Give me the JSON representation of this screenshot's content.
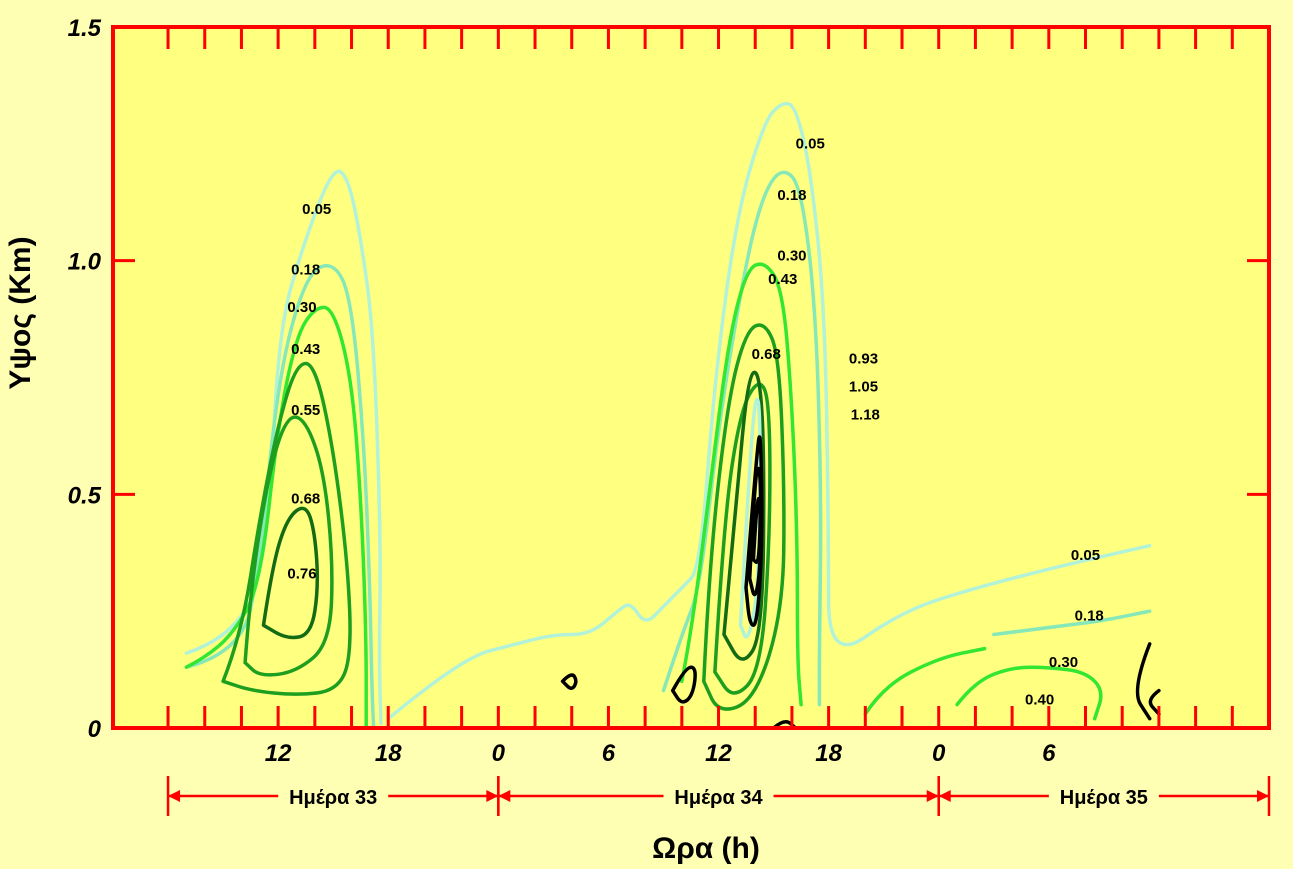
{
  "chart_data": {
    "type": "contour",
    "title": "",
    "xlabel": "Ωρα (h)",
    "ylabel": "Υψος (Km)",
    "ylim": [
      0,
      1.5
    ],
    "xlim": [
      3,
      66
    ],
    "x_ticks": [
      {
        "value": 12,
        "label": "12"
      },
      {
        "value": 18,
        "label": "18"
      },
      {
        "value": 24,
        "label": "0"
      },
      {
        "value": 30,
        "label": "6"
      },
      {
        "value": 36,
        "label": "12"
      },
      {
        "value": 42,
        "label": "18"
      },
      {
        "value": 48,
        "label": "0"
      },
      {
        "value": 54,
        "label": "6"
      }
    ],
    "y_ticks": [
      {
        "value": 0,
        "label": "0"
      },
      {
        "value": 0.5,
        "label": "0.5"
      },
      {
        "value": 1.0,
        "label": "1.0"
      },
      {
        "value": 1.5,
        "label": "1.5"
      }
    ],
    "days": [
      {
        "label": "Ημέρα 33",
        "from": 6,
        "to": 24
      },
      {
        "label": "Ημέρα 34",
        "from": 24,
        "to": 48
      },
      {
        "label": "Ημέρα 35",
        "from": 48,
        "to": 66
      }
    ],
    "colors": {
      "frame": "#FF0000",
      "background": "#FFFF80",
      "page": "#FFFFB3"
    },
    "contours": [
      {
        "level": 0.05,
        "color": "#B2F2D9",
        "points": [
          [
            7,
            0.16
          ],
          [
            10,
            0.2
          ],
          [
            11.5,
            0.4
          ],
          [
            12,
            0.85
          ],
          [
            13.5,
            1.05
          ],
          [
            15,
            1.2
          ],
          [
            15.8,
            1.18
          ],
          [
            16.5,
            1.05
          ],
          [
            17.2,
            0.85
          ],
          [
            17.6,
            0.4
          ],
          [
            17.5,
            0.15
          ],
          [
            17.6,
            0.01
          ]
        ]
      },
      {
        "level": 0.05,
        "color": "#B2F2D9",
        "points": [
          [
            18,
            0.02
          ],
          [
            22,
            0.15
          ],
          [
            25,
            0.18
          ],
          [
            27,
            0.2
          ],
          [
            29,
            0.2
          ],
          [
            30.5,
            0.25
          ],
          [
            31.2,
            0.27
          ],
          [
            32,
            0.22
          ],
          [
            33,
            0.26
          ],
          [
            34,
            0.3
          ],
          [
            35,
            0.34
          ],
          [
            35.8,
            0.75
          ],
          [
            37,
            1.1
          ],
          [
            38.5,
            1.3
          ],
          [
            39.5,
            1.34
          ],
          [
            40.2,
            1.33
          ],
          [
            41,
            1.2
          ],
          [
            41.8,
            0.9
          ],
          [
            42,
            0.4
          ],
          [
            42,
            0.14
          ],
          [
            46,
            0.25
          ],
          [
            50,
            0.3
          ],
          [
            55,
            0.35
          ],
          [
            59.5,
            0.39
          ]
        ]
      },
      {
        "level": 0.18,
        "color": "#86E8B8",
        "points": [
          [
            7,
            0.13
          ],
          [
            10,
            0.16
          ],
          [
            11,
            0.35
          ],
          [
            12,
            0.75
          ],
          [
            13.5,
            0.97
          ],
          [
            15,
            1.0
          ],
          [
            16,
            0.92
          ],
          [
            16.7,
            0.6
          ],
          [
            17,
            0.3
          ],
          [
            17.1,
            0.1
          ],
          [
            17.2,
            0.0
          ]
        ]
      },
      {
        "level": 0.18,
        "color": "#86E8B8",
        "points": [
          [
            33,
            0.08
          ],
          [
            34,
            0.2
          ],
          [
            35,
            0.3
          ],
          [
            36,
            0.65
          ],
          [
            37.5,
            1.0
          ],
          [
            38.5,
            1.15
          ],
          [
            39.5,
            1.2
          ],
          [
            40.5,
            1.16
          ],
          [
            41.3,
            0.9
          ],
          [
            41.6,
            0.5
          ],
          [
            41.5,
            0.18
          ],
          [
            41.5,
            0.05
          ]
        ]
      },
      {
        "level": 0.18,
        "color": "#86E8B8",
        "points": [
          [
            51,
            0.2
          ],
          [
            55,
            0.22
          ],
          [
            57,
            0.23
          ],
          [
            59.5,
            0.25
          ]
        ]
      },
      {
        "level": 0.3,
        "color": "#32E632",
        "points": [
          [
            7,
            0.13
          ],
          [
            8,
            0.15
          ],
          [
            9.5,
            0.2
          ],
          [
            11,
            0.3
          ],
          [
            12,
            0.65
          ],
          [
            13,
            0.84
          ],
          [
            14,
            0.9
          ],
          [
            15,
            0.9
          ],
          [
            16,
            0.75
          ],
          [
            16.5,
            0.5
          ],
          [
            16.8,
            0.2
          ],
          [
            16.8,
            0.0
          ]
        ]
      },
      {
        "level": 0.3,
        "color": "#32E632",
        "points": [
          [
            34,
            0.1
          ],
          [
            34.5,
            0.2
          ],
          [
            35.5,
            0.5
          ],
          [
            36.5,
            0.82
          ],
          [
            37.5,
            0.98
          ],
          [
            38.5,
            1.0
          ],
          [
            39.5,
            0.94
          ],
          [
            40,
            0.7
          ],
          [
            40.3,
            0.4
          ],
          [
            40.3,
            0.14
          ],
          [
            40.5,
            0.05
          ]
        ]
      },
      {
        "level": 0.3,
        "color": "#32E632",
        "points": [
          [
            49,
            0.05
          ],
          [
            50,
            0.1
          ],
          [
            52,
            0.13
          ],
          [
            54,
            0.13
          ],
          [
            56,
            0.12
          ],
          [
            57,
            0.08
          ],
          [
            56.5,
            0.02
          ]
        ]
      },
      {
        "level": 0.3,
        "color": "#32E632",
        "points": [
          [
            44,
            0.03
          ],
          [
            45,
            0.09
          ],
          [
            48,
            0.15
          ],
          [
            50.5,
            0.17
          ]
        ]
      },
      {
        "level": 0.43,
        "color": "#1E9E1E",
        "points": [
          [
            9,
            0.1
          ],
          [
            10,
            0.2
          ],
          [
            11,
            0.45
          ],
          [
            12,
            0.65
          ],
          [
            13,
            0.78
          ],
          [
            14,
            0.78
          ],
          [
            15,
            0.6
          ],
          [
            15.8,
            0.35
          ],
          [
            16,
            0.15
          ],
          [
            15.2,
            0.08
          ],
          [
            13,
            0.07
          ],
          [
            10.5,
            0.08
          ],
          [
            9,
            0.1
          ]
        ]
      },
      {
        "level": 0.43,
        "color": "#1E9E1E",
        "points": [
          [
            35.2,
            0.1
          ],
          [
            35.5,
            0.35
          ],
          [
            36.5,
            0.7
          ],
          [
            37.5,
            0.85
          ],
          [
            38.5,
            0.87
          ],
          [
            39.3,
            0.8
          ],
          [
            39.6,
            0.5
          ],
          [
            39.5,
            0.25
          ],
          [
            38,
            0.06
          ],
          [
            36,
            0.03
          ],
          [
            35.2,
            0.1
          ]
        ]
      },
      {
        "level": 0.55,
        "color": "#1E9E1E",
        "points": [
          [
            10.2,
            0.14
          ],
          [
            10.5,
            0.3
          ],
          [
            11.5,
            0.55
          ],
          [
            12.5,
            0.67
          ],
          [
            13.5,
            0.66
          ],
          [
            14.5,
            0.55
          ],
          [
            15,
            0.35
          ],
          [
            14.8,
            0.18
          ],
          [
            13,
            0.12
          ],
          [
            11,
            0.11
          ],
          [
            10.2,
            0.14
          ]
        ]
      },
      {
        "level": 0.55,
        "color": "#1E9E1E",
        "points": [
          [
            35.8,
            0.12
          ],
          [
            36.3,
            0.45
          ],
          [
            37.2,
            0.68
          ],
          [
            38.2,
            0.75
          ],
          [
            38.8,
            0.7
          ],
          [
            38.8,
            0.4
          ],
          [
            38.3,
            0.12
          ],
          [
            36.8,
            0.06
          ],
          [
            35.8,
            0.12
          ]
        ]
      },
      {
        "level": 0.68,
        "color": "#136B13",
        "points": [
          [
            11.2,
            0.22
          ],
          [
            11.7,
            0.35
          ],
          [
            12.5,
            0.45
          ],
          [
            13.5,
            0.48
          ],
          [
            14,
            0.42
          ],
          [
            14.2,
            0.3
          ],
          [
            13.8,
            0.2
          ],
          [
            12.5,
            0.19
          ],
          [
            11.2,
            0.22
          ]
        ]
      },
      {
        "level": 0.68,
        "color": "#136B13",
        "points": [
          [
            36.3,
            0.2
          ],
          [
            37,
            0.5
          ],
          [
            37.6,
            0.75
          ],
          [
            38.2,
            0.77
          ],
          [
            38.5,
            0.6
          ],
          [
            38.4,
            0.2
          ],
          [
            37.3,
            0.13
          ],
          [
            36.3,
            0.2
          ]
        ]
      },
      {
        "level": 0.76,
        "color": "#B2F2D9",
        "points": [
          [
            37.2,
            0.22
          ],
          [
            37.6,
            0.5
          ],
          [
            38,
            0.72
          ],
          [
            38.3,
            0.68
          ],
          [
            38.2,
            0.3
          ],
          [
            37.6,
            0.18
          ],
          [
            37.2,
            0.22
          ]
        ]
      },
      {
        "level": 0.93,
        "color": "#000000",
        "points": [
          [
            37.5,
            0.3
          ],
          [
            38.1,
            0.6
          ],
          [
            38.3,
            0.64
          ],
          [
            38.4,
            0.4
          ],
          [
            38.1,
            0.22
          ],
          [
            37.7,
            0.22
          ],
          [
            37.5,
            0.3
          ]
        ]
      },
      {
        "level": 1.05,
        "color": "#000000",
        "points": [
          [
            37.7,
            0.32
          ],
          [
            38.0,
            0.55
          ],
          [
            38.3,
            0.56
          ],
          [
            38.3,
            0.35
          ],
          [
            38.0,
            0.27
          ],
          [
            37.7,
            0.32
          ]
        ]
      },
      {
        "level": 1.18,
        "color": "#000000",
        "points": [
          [
            37.9,
            0.36
          ],
          [
            38.1,
            0.5
          ],
          [
            38.3,
            0.48
          ],
          [
            38.2,
            0.35
          ],
          [
            37.9,
            0.36
          ]
        ]
      },
      {
        "level": 0.4,
        "color": "#000000",
        "points": [
          [
            59.5,
            0.18
          ],
          [
            58.5,
            0.08
          ],
          [
            59.5,
            0.02
          ]
        ]
      },
      {
        "level": 0.4,
        "color": "#000000",
        "points": [
          [
            60,
            0.08
          ],
          [
            59.3,
            0.06
          ],
          [
            60,
            0.03
          ]
        ]
      },
      {
        "level": 0.4,
        "color": "#000000",
        "points": [
          [
            27.5,
            0.1
          ],
          [
            28.0,
            0.12
          ],
          [
            28.3,
            0.1
          ],
          [
            28.0,
            0.08
          ],
          [
            27.5,
            0.1
          ]
        ]
      },
      {
        "level": 0.4,
        "color": "#000000",
        "points": [
          [
            33.5,
            0.08
          ],
          [
            34.2,
            0.13
          ],
          [
            34.8,
            0.13
          ],
          [
            34.6,
            0.07
          ],
          [
            34.0,
            0.05
          ],
          [
            33.5,
            0.08
          ]
        ]
      },
      {
        "level": 0.4,
        "color": "#000000",
        "points": [
          [
            39.0,
            0.0
          ],
          [
            39.6,
            0.02
          ],
          [
            40.2,
            0.0
          ]
        ]
      }
    ],
    "labels": [
      {
        "text": "0.05",
        "x": 14.1,
        "y": 1.1
      },
      {
        "text": "0.18",
        "x": 13.5,
        "y": 0.97
      },
      {
        "text": "0.30",
        "x": 13.3,
        "y": 0.89
      },
      {
        "text": "0.43",
        "x": 13.5,
        "y": 0.8
      },
      {
        "text": "0.55",
        "x": 13.5,
        "y": 0.67
      },
      {
        "text": "0.68",
        "x": 13.5,
        "y": 0.48
      },
      {
        "text": "0.76",
        "x": 13.3,
        "y": 0.32
      },
      {
        "text": "0.05",
        "x": 41.0,
        "y": 1.24
      },
      {
        "text": "0.18",
        "x": 40.0,
        "y": 1.13
      },
      {
        "text": "0.30",
        "x": 40.0,
        "y": 1.0
      },
      {
        "text": "0.43",
        "x": 39.5,
        "y": 0.95
      },
      {
        "text": "0.68",
        "x": 38.6,
        "y": 0.79
      },
      {
        "text": "0.93",
        "x": 43.9,
        "y": 0.78
      },
      {
        "text": "1.05",
        "x": 43.9,
        "y": 0.72
      },
      {
        "text": "1.18",
        "x": 44.0,
        "y": 0.66
      },
      {
        "text": "0.05",
        "x": 56.0,
        "y": 0.36
      },
      {
        "text": "0.18",
        "x": 56.2,
        "y": 0.23
      },
      {
        "text": "0.30",
        "x": 54.8,
        "y": 0.13
      },
      {
        "text": "0.40",
        "x": 53.5,
        "y": 0.05
      }
    ]
  }
}
